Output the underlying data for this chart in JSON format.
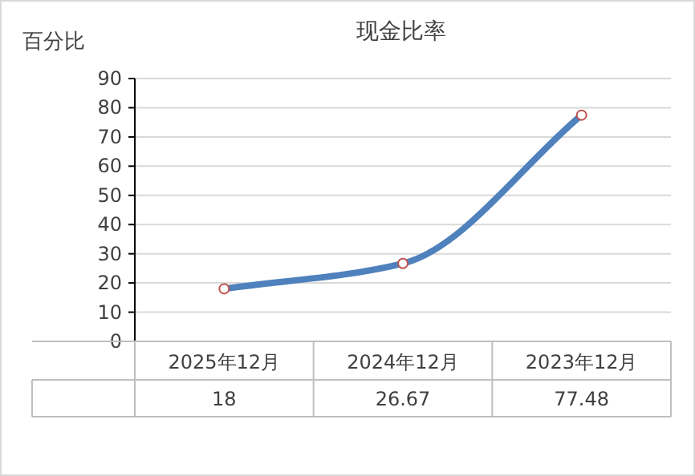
{
  "chart_data": {
    "type": "line",
    "title": "现金比率",
    "ylabel": "百分比",
    "categories": [
      "2025年12月",
      "2024年12月",
      "2023年12月"
    ],
    "series": [
      {
        "color": "#4f81bd",
        "values": [
          18,
          26.67,
          77.48
        ]
      }
    ],
    "ylim": [
      0,
      90
    ],
    "yticks": [
      0,
      10,
      20,
      30,
      40,
      50,
      60,
      70,
      80,
      90
    ],
    "grid": "y",
    "marker": "circle",
    "data_labels": true
  }
}
